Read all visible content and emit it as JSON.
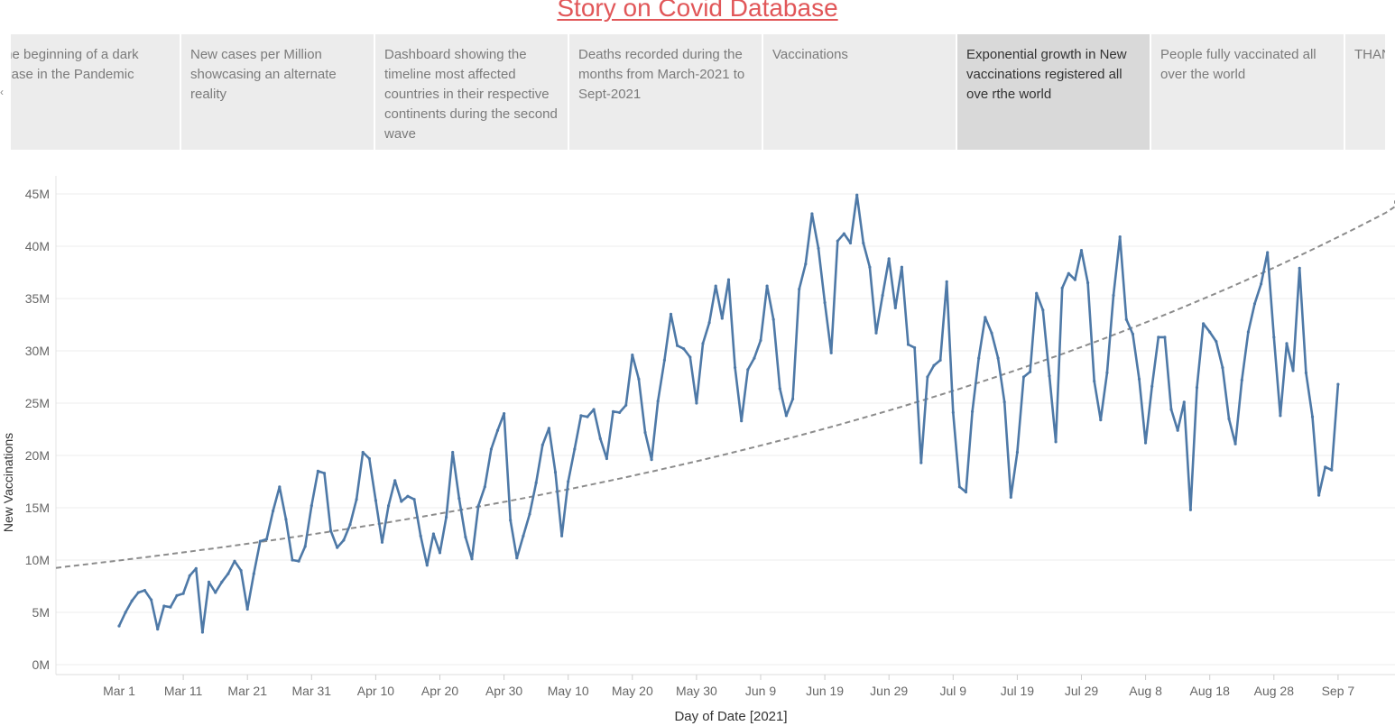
{
  "story": {
    "title": "Story on Covid Database",
    "points": [
      "The beginning of a dark phase in the Pandemic",
      "New cases per Million showcasing an alternate reality",
      "Dashboard showing the timeline most affected countries in their respective continents during the second wave",
      "Deaths recorded during the months from March-2021 to Sept-2021",
      "Vaccinations",
      "Exponential growth in New vaccinations registered all ove rthe world",
      "People fully vaccinated all over the world",
      "THANK YOU"
    ],
    "selected_index": 5,
    "prev_arrow": "‹"
  },
  "colors": {
    "title": "#e15759",
    "line": "#4e79a7",
    "trend": "#8c8c8c",
    "grid": "#ececec",
    "tab": "#ececec",
    "tab_selected": "#d9d9d9"
  },
  "chart_data": {
    "type": "line",
    "xlabel": "Day of Date [2021]",
    "ylabel": "New Vaccinations",
    "ylim": [
      0,
      47000000
    ],
    "x_start": "2021-03-01",
    "x_tick_labels": [
      "Mar 1",
      "Mar 11",
      "Mar 21",
      "Mar 31",
      "Apr 10",
      "Apr 20",
      "Apr 30",
      "May 10",
      "May 20",
      "May 30",
      "Jun 9",
      "Jun 19",
      "Jun 29",
      "Jul 9",
      "Jul 19",
      "Jul 29",
      "Aug 8",
      "Aug 18",
      "Aug 28",
      "Sep 7"
    ],
    "x_tick_days": [
      0,
      10,
      20,
      30,
      40,
      50,
      60,
      70,
      80,
      90,
      100,
      110,
      120,
      130,
      140,
      150,
      160,
      170,
      180,
      190
    ],
    "y_ticks": [
      0,
      5000000,
      10000000,
      15000000,
      20000000,
      25000000,
      30000000,
      35000000,
      40000000,
      45000000
    ],
    "y_tick_labels": [
      "0M",
      "5M",
      "10M",
      "15M",
      "20M",
      "25M",
      "30M",
      "35M",
      "40M",
      "45M"
    ],
    "series": [
      {
        "name": "New Vaccinations",
        "values": [
          3.7,
          5.0,
          6.1,
          6.9,
          7.1,
          6.2,
          3.4,
          5.6,
          5.5,
          6.6,
          6.8,
          8.5,
          9.2,
          3.1,
          7.9,
          6.9,
          7.9,
          8.7,
          9.9,
          9.0,
          5.3,
          8.7,
          11.8,
          12.0,
          14.7,
          17.0,
          13.9,
          10.0,
          9.9,
          11.3,
          15.2,
          18.5,
          18.3,
          12.8,
          11.2,
          11.9,
          13.4,
          15.8,
          20.3,
          19.7,
          15.7,
          11.7,
          15.2,
          17.6,
          15.6,
          16.1,
          15.8,
          12.3,
          9.5,
          12.5,
          10.7,
          14.1,
          20.3,
          15.9,
          12.2,
          10.1,
          15.2,
          17.0,
          20.6,
          22.4,
          24.0,
          13.8,
          10.2,
          12.3,
          14.4,
          17.4,
          21.0,
          22.6,
          18.4,
          12.3,
          17.5,
          20.6,
          23.8,
          23.7,
          24.4,
          21.6,
          19.7,
          24.2,
          24.1,
          24.8,
          29.6,
          27.3,
          22.2,
          19.6,
          25.2,
          29.1,
          33.5,
          30.5,
          30.2,
          29.4,
          25.0,
          30.7,
          32.7,
          36.2,
          33.1,
          36.8,
          28.4,
          23.3,
          28.2,
          29.3,
          31.0,
          36.2,
          33.0,
          26.4,
          23.8,
          25.4,
          35.9,
          38.3,
          43.1,
          39.8,
          34.6,
          29.8,
          40.5,
          41.2,
          40.3,
          44.9,
          40.3,
          38.0,
          31.7,
          35.3,
          38.8,
          34.1,
          38.0,
          30.6,
          30.3,
          19.3,
          27.5,
          28.6,
          29.1,
          36.6,
          24.1,
          17.0,
          16.5,
          24.2,
          29.3,
          33.2,
          31.7,
          29.3,
          25.1,
          16.0,
          20.3,
          27.5,
          28.0,
          35.5,
          33.9,
          27.6,
          21.3,
          36.0,
          37.4,
          36.8,
          39.6,
          36.5,
          27.1,
          23.4,
          27.9,
          35.3,
          40.9,
          33.0,
          31.6,
          27.3,
          21.2,
          26.6,
          31.3,
          31.3,
          24.4,
          22.4,
          25.1,
          14.8,
          26.5,
          32.6,
          31.8,
          30.9,
          28.4,
          23.5,
          21.1,
          27.2,
          31.8,
          34.5,
          36.4,
          39.4,
          31.3,
          23.8,
          30.7,
          28.1,
          37.9,
          27.9,
          23.7,
          16.2,
          18.9,
          18.6,
          26.8
        ]
      },
      {
        "name": "Exponential trend line",
        "style": "dashed",
        "x_days": [
          -10,
          201
        ],
        "formula": "y = a * exp(b * (day + 10))",
        "a": 9.25,
        "b": 0.00743
      }
    ],
    "value_unit": "millions"
  }
}
